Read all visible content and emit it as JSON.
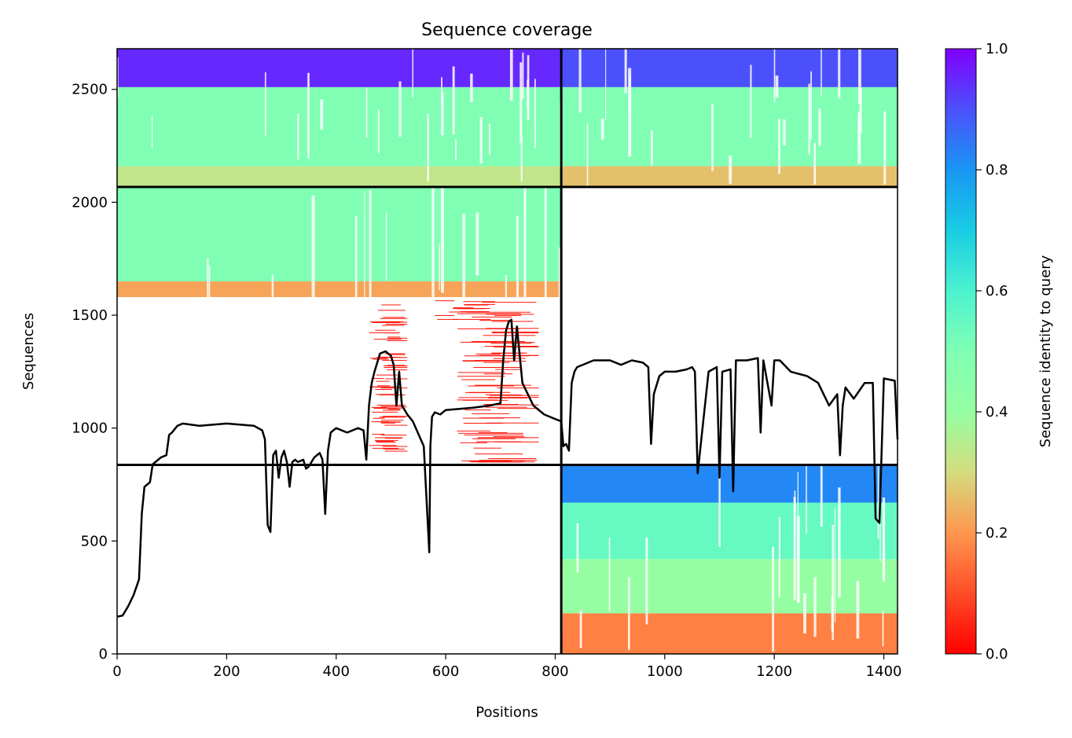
{
  "chart_data": {
    "type": "heatmap",
    "title": "Sequence coverage",
    "xlabel": "Positions",
    "ylabel": "Sequences",
    "xlim": [
      0,
      1425
    ],
    "ylim": [
      0,
      2680
    ],
    "x_ticks": [
      0,
      200,
      400,
      600,
      800,
      1000,
      1200,
      1400
    ],
    "y_ticks": [
      0,
      500,
      1000,
      1500,
      2000,
      2500
    ],
    "colorbar": {
      "label": "Sequence identity to query",
      "range": [
        0,
        1
      ],
      "ticks": [
        "0.0",
        "0.2",
        "0.4",
        "0.6",
        "0.8",
        "1.0"
      ]
    },
    "chain_boundaries": {
      "x": 811,
      "y": [
        837,
        2068
      ]
    },
    "blocks": [
      {
        "x": [
          0,
          811
        ],
        "y": [
          2068,
          2680
        ],
        "bands": [
          {
            "y": [
              2068,
              2160
            ],
            "identity": 0.33
          },
          {
            "y": [
              2160,
              2510
            ],
            "identity": 0.5
          },
          {
            "y": [
              2510,
              2680
            ],
            "identity": 0.95
          }
        ]
      },
      {
        "x": [
          811,
          1425
        ],
        "y": [
          2068,
          2680
        ],
        "bands": [
          {
            "y": [
              2068,
              2160
            ],
            "identity": 0.26
          },
          {
            "y": [
              2160,
              2510
            ],
            "identity": 0.5
          },
          {
            "y": [
              2510,
              2680
            ],
            "identity": 0.9
          }
        ]
      },
      {
        "x": [
          0,
          811
        ],
        "y": [
          837,
          2068
        ],
        "bands": [
          {
            "y": [
              1580,
              1650
            ],
            "identity": 0.22
          },
          {
            "y": [
              1650,
              2068
            ],
            "identity": 0.5
          }
        ]
      },
      {
        "x": [
          811,
          1425
        ],
        "y": [
          0,
          837
        ],
        "bands": [
          {
            "y": [
              0,
              180
            ],
            "identity": 0.17
          },
          {
            "y": [
              180,
              420
            ],
            "identity": 0.4
          },
          {
            "y": [
              420,
              670
            ],
            "identity": 0.55
          },
          {
            "y": [
              670,
              837
            ],
            "identity": 0.82
          }
        ]
      }
    ],
    "sparse_regions": [
      {
        "x": [
          460,
          530
        ],
        "y": [
          890,
          1560
        ],
        "identity": 0.03
      },
      {
        "x": [
          620,
          770
        ],
        "y": [
          850,
          1560
        ],
        "identity": 0.03
      },
      {
        "x": [
          580,
          690
        ],
        "y": [
          1480,
          1580
        ],
        "identity": 0.03
      }
    ],
    "coverage_series": {
      "name": "",
      "x": [
        0,
        10,
        20,
        30,
        40,
        45,
        50,
        55,
        60,
        65,
        70,
        75,
        80,
        90,
        95,
        100,
        110,
        120,
        150,
        200,
        250,
        265,
        270,
        275,
        280,
        285,
        290,
        295,
        300,
        305,
        310,
        315,
        320,
        325,
        330,
        340,
        345,
        350,
        360,
        370,
        375,
        380,
        385,
        390,
        400,
        420,
        440,
        450,
        455,
        460,
        465,
        470,
        480,
        490,
        500,
        505,
        510,
        515,
        520,
        530,
        540,
        560,
        570,
        572,
        575,
        580,
        590,
        600,
        650,
        680,
        700,
        705,
        710,
        715,
        720,
        725,
        730,
        740,
        760,
        780,
        800,
        811,
        815,
        820,
        825,
        830,
        835,
        840,
        870,
        900,
        920,
        940,
        960,
        970,
        975,
        980,
        990,
        1000,
        1020,
        1040,
        1050,
        1055,
        1060,
        1080,
        1095,
        1100,
        1105,
        1120,
        1125,
        1130,
        1150,
        1170,
        1175,
        1180,
        1195,
        1200,
        1210,
        1230,
        1260,
        1280,
        1300,
        1315,
        1320,
        1325,
        1330,
        1345,
        1365,
        1380,
        1385,
        1392,
        1400,
        1420,
        1425
      ],
      "y": [
        165,
        170,
        210,
        260,
        330,
        620,
        740,
        750,
        760,
        840,
        850,
        860,
        870,
        880,
        970,
        980,
        1010,
        1020,
        1010,
        1020,
        1010,
        990,
        950,
        570,
        540,
        880,
        900,
        780,
        870,
        900,
        850,
        740,
        850,
        860,
        850,
        860,
        820,
        830,
        870,
        890,
        860,
        620,
        900,
        980,
        1000,
        980,
        1000,
        990,
        860,
        1100,
        1200,
        1250,
        1330,
        1340,
        1320,
        1280,
        1100,
        1250,
        1100,
        1060,
        1030,
        920,
        450,
        920,
        1050,
        1070,
        1060,
        1080,
        1090,
        1100,
        1110,
        1300,
        1430,
        1470,
        1480,
        1300,
        1450,
        1200,
        1100,
        1060,
        1040,
        1030,
        920,
        930,
        900,
        1200,
        1250,
        1270,
        1300,
        1300,
        1280,
        1300,
        1290,
        1270,
        930,
        1150,
        1230,
        1250,
        1250,
        1260,
        1270,
        1250,
        800,
        1250,
        1270,
        780,
        1250,
        1260,
        720,
        1300,
        1300,
        1310,
        980,
        1300,
        1100,
        1300,
        1300,
        1250,
        1230,
        1200,
        1100,
        1150,
        880,
        1100,
        1180,
        1130,
        1200,
        1200,
        600,
        580,
        1220,
        1210,
        950
      ]
    }
  }
}
